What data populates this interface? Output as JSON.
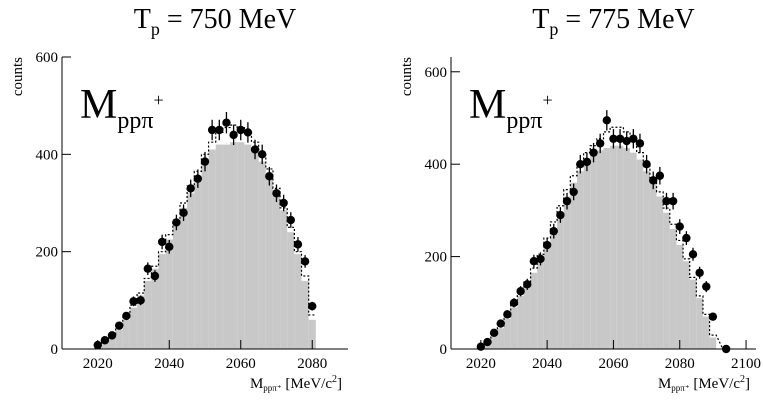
{
  "chart_data": [
    {
      "type": "scatter",
      "title": [
        "T",
        "p",
        " = 750 MeV"
      ],
      "annotation": [
        "M",
        "ppπ",
        "+"
      ],
      "x_label": [
        "M",
        "ppπ⁺",
        " [MeV/c",
        "2",
        "]"
      ],
      "y_label": "counts",
      "xlim": [
        2010,
        2090
      ],
      "ylim": [
        0,
        600
      ],
      "xticks": [
        2020,
        2040,
        2060,
        2080
      ],
      "yticks": [
        0,
        200,
        400,
        600
      ],
      "x": [
        2020,
        2022,
        2024,
        2026,
        2028,
        2030,
        2032,
        2034,
        2036,
        2038,
        2040,
        2042,
        2044,
        2046,
        2048,
        2050,
        2052,
        2054,
        2056,
        2058,
        2060,
        2062,
        2064,
        2066,
        2068,
        2070,
        2072,
        2074,
        2076,
        2078,
        2080
      ],
      "series": [
        {
          "type": "histogram",
          "color": "#c8c8c8",
          "values": [
            5,
            15,
            25,
            40,
            60,
            85,
            110,
            140,
            165,
            195,
            225,
            255,
            290,
            320,
            355,
            385,
            410,
            420,
            420,
            425,
            425,
            420,
            405,
            385,
            355,
            320,
            285,
            240,
            195,
            140,
            60
          ]
        },
        {
          "type": "dotted-step",
          "color": "#000000",
          "values": [
            8,
            18,
            30,
            45,
            65,
            90,
            115,
            145,
            170,
            200,
            235,
            265,
            300,
            335,
            365,
            400,
            425,
            445,
            455,
            460,
            455,
            445,
            425,
            400,
            370,
            330,
            290,
            250,
            200,
            150,
            70
          ]
        },
        {
          "type": "points",
          "color": "#000000",
          "values": [
            8,
            18,
            28,
            48,
            68,
            98,
            100,
            165,
            150,
            220,
            210,
            260,
            280,
            330,
            350,
            385,
            450,
            450,
            465,
            440,
            450,
            445,
            410,
            400,
            355,
            320,
            300,
            265,
            215,
            180,
            88
          ],
          "errors": [
            3,
            4,
            5,
            7,
            8,
            10,
            10,
            13,
            12,
            15,
            14,
            16,
            17,
            18,
            19,
            20,
            21,
            21,
            22,
            21,
            21,
            21,
            20,
            20,
            19,
            18,
            17,
            16,
            15,
            13,
            9
          ]
        }
      ]
    },
    {
      "type": "scatter",
      "title": [
        "T",
        "p",
        " = 775 MeV"
      ],
      "annotation": [
        "M",
        "ppπ",
        "+"
      ],
      "x_label": [
        "M",
        "ppπ⁺",
        " [MeV/c",
        "2",
        "]"
      ],
      "y_label": "counts",
      "xlim": [
        2011,
        2103
      ],
      "ylim": [
        0,
        632
      ],
      "xticks": [
        2020,
        2040,
        2060,
        2080,
        2100
      ],
      "yticks": [
        0,
        200,
        400,
        600
      ],
      "x": [
        2020,
        2022,
        2024,
        2026,
        2028,
        2030,
        2032,
        2034,
        2036,
        2038,
        2040,
        2042,
        2044,
        2046,
        2048,
        2050,
        2052,
        2054,
        2056,
        2058,
        2060,
        2062,
        2064,
        2066,
        2068,
        2070,
        2072,
        2074,
        2076,
        2078,
        2080,
        2082,
        2084,
        2086,
        2088,
        2090,
        2094
      ],
      "series": [
        {
          "type": "histogram",
          "color": "#c8c8c8",
          "values": [
            5,
            15,
            30,
            45,
            65,
            90,
            115,
            140,
            165,
            195,
            225,
            260,
            295,
            330,
            360,
            385,
            405,
            420,
            430,
            435,
            440,
            440,
            435,
            425,
            410,
            385,
            360,
            330,
            295,
            260,
            225,
            190,
            150,
            110,
            70,
            25,
            0
          ]
        },
        {
          "type": "dotted-step",
          "color": "#000000",
          "values": [
            8,
            18,
            32,
            50,
            70,
            95,
            120,
            145,
            175,
            205,
            240,
            275,
            310,
            345,
            375,
            405,
            425,
            440,
            455,
            470,
            480,
            480,
            470,
            450,
            425,
            400,
            370,
            340,
            305,
            270,
            235,
            195,
            155,
            115,
            75,
            30,
            0
          ]
        },
        {
          "type": "points",
          "color": "#000000",
          "values": [
            5,
            15,
            35,
            55,
            75,
            100,
            125,
            140,
            190,
            195,
            225,
            255,
            290,
            320,
            340,
            400,
            405,
            425,
            445,
            495,
            455,
            455,
            450,
            455,
            445,
            400,
            365,
            375,
            320,
            320,
            265,
            240,
            205,
            165,
            135,
            70,
            0
          ],
          "errors": [
            2,
            4,
            6,
            7,
            9,
            10,
            11,
            12,
            14,
            14,
            15,
            16,
            17,
            18,
            18,
            20,
            20,
            21,
            21,
            22,
            21,
            21,
            21,
            21,
            21,
            20,
            19,
            19,
            18,
            18,
            16,
            15,
            14,
            13,
            12,
            8,
            0
          ]
        }
      ]
    }
  ]
}
